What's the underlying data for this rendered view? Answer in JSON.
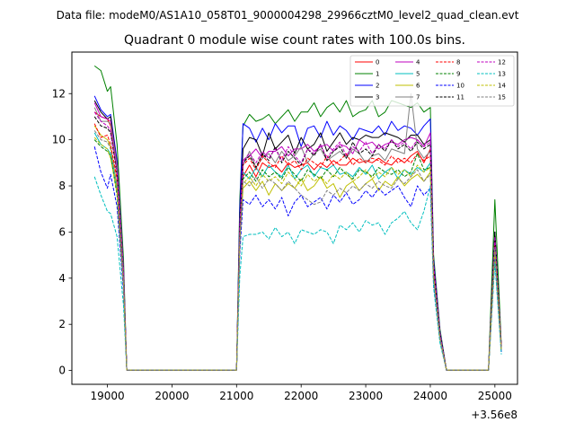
{
  "suptitle": "Data file: modeM0/AS1A10_058T01_9000004298_29966cztM0_level2_quad_clean.evt",
  "chart_data": {
    "type": "line",
    "title": "Quadrant 0 module wise count rates with 100.0s bins.",
    "xlabel": "",
    "ylabel": "",
    "x_offset_label": "+3.56e8",
    "xlim": [
      18450,
      25350
    ],
    "ylim": [
      -0.6,
      13.8
    ],
    "xticks": [
      19000,
      20000,
      21000,
      22000,
      23000,
      24000,
      25000
    ],
    "yticks": [
      0,
      2,
      4,
      6,
      8,
      10,
      12
    ],
    "legend_position": "upper right",
    "x_values": [
      18800,
      18900,
      19000,
      19050,
      19150,
      19250,
      19300,
      21000,
      21050,
      21100,
      21200,
      21300,
      21400,
      21500,
      21600,
      21700,
      21800,
      21900,
      22000,
      22100,
      22200,
      22300,
      22400,
      22500,
      22600,
      22700,
      22800,
      22900,
      23000,
      23100,
      23200,
      23300,
      23400,
      23500,
      23600,
      23700,
      23800,
      23900,
      24000,
      24050,
      24150,
      24250,
      24300,
      24900,
      25000,
      25100
    ],
    "series": [
      {
        "name": "0",
        "color": "#ff0000",
        "dashed": false,
        "values": [
          11.2,
          11.0,
          10.9,
          10.6,
          8.6,
          4.0,
          0.02,
          0.02,
          6.0,
          8.4,
          8.9,
          8.4,
          9.0,
          8.8,
          8.9,
          8.6,
          9.0,
          8.8,
          8.9,
          9.0,
          8.7,
          9.0,
          8.8,
          9.1,
          8.9,
          8.9,
          9.2,
          9.0,
          9.1,
          9.0,
          9.2,
          9.0,
          8.9,
          9.2,
          9.0,
          9.3,
          9.5,
          9.0,
          9.6,
          4.5,
          1.6,
          0.02,
          0.02,
          0.02,
          5.5,
          1.0
        ]
      },
      {
        "name": "1",
        "color": "#008000",
        "dashed": false,
        "values": [
          13.2,
          13.0,
          12.1,
          12.3,
          9.8,
          4.8,
          0.02,
          0.02,
          7.4,
          10.6,
          11.1,
          10.8,
          10.9,
          11.1,
          10.7,
          11.0,
          11.3,
          10.8,
          11.2,
          11.2,
          11.6,
          11.0,
          11.4,
          11.6,
          11.2,
          11.7,
          11.0,
          11.2,
          11.3,
          11.7,
          11.0,
          11.2,
          11.7,
          11.6,
          11.5,
          11.4,
          11.6,
          11.2,
          11.4,
          5.0,
          1.8,
          0.02,
          0.02,
          0.02,
          7.4,
          1.1
        ]
      },
      {
        "name": "2",
        "color": "#0000ff",
        "dashed": false,
        "values": [
          11.9,
          11.3,
          11.0,
          11.1,
          9.1,
          4.4,
          0.02,
          0.02,
          7.0,
          10.7,
          10.5,
          9.9,
          10.5,
          10.0,
          10.7,
          10.3,
          10.6,
          10.6,
          9.7,
          10.5,
          10.6,
          10.1,
          10.8,
          10.2,
          10.6,
          10.4,
          10.0,
          10.5,
          10.4,
          10.3,
          10.6,
          10.2,
          10.8,
          10.4,
          10.6,
          10.5,
          10.2,
          10.6,
          10.9,
          4.8,
          1.7,
          0.02,
          0.02,
          0.02,
          6.0,
          1.0
        ]
      },
      {
        "name": "3",
        "color": "#000000",
        "dashed": false,
        "values": [
          11.7,
          11.2,
          10.9,
          11.0,
          8.9,
          4.3,
          0.02,
          0.02,
          6.5,
          9.6,
          10.1,
          10.0,
          9.3,
          10.3,
          9.6,
          9.9,
          10.2,
          9.4,
          10.1,
          9.6,
          9.8,
          10.3,
          9.5,
          9.9,
          10.3,
          9.8,
          10.1,
          10.0,
          10.2,
          10.1,
          10.1,
          10.3,
          10.2,
          10.1,
          9.9,
          10.2,
          10.2,
          9.8,
          10.0,
          4.6,
          1.6,
          0.02,
          0.02,
          0.02,
          6.0,
          1.0
        ]
      },
      {
        "name": "4",
        "color": "#bf00bf",
        "dashed": false,
        "values": [
          11.6,
          11.0,
          10.9,
          10.8,
          8.9,
          4.3,
          0.02,
          0.02,
          6.3,
          9.1,
          9.3,
          9.6,
          9.2,
          9.5,
          9.5,
          9.7,
          9.3,
          9.6,
          9.6,
          9.8,
          9.5,
          9.7,
          9.8,
          9.5,
          9.8,
          9.7,
          9.4,
          10.0,
          9.8,
          9.9,
          9.6,
          9.8,
          9.9,
          9.8,
          10.0,
          10.1,
          10.0,
          9.7,
          10.3,
          4.6,
          1.6,
          0.02,
          0.02,
          0.02,
          5.7,
          1.0
        ]
      },
      {
        "name": "5",
        "color": "#00bfbf",
        "dashed": false,
        "values": [
          10.3,
          9.8,
          9.6,
          9.4,
          7.8,
          3.8,
          0.02,
          0.02,
          5.8,
          8.6,
          8.3,
          8.8,
          8.4,
          8.9,
          8.6,
          8.4,
          8.9,
          8.3,
          8.7,
          8.9,
          8.4,
          8.8,
          8.7,
          8.9,
          8.5,
          8.6,
          8.4,
          8.8,
          8.5,
          8.9,
          8.3,
          8.6,
          8.8,
          8.3,
          8.7,
          8.5,
          8.8,
          8.6,
          9.0,
          4.1,
          1.5,
          0.02,
          0.02,
          0.02,
          5.3,
          0.9
        ]
      },
      {
        "name": "6",
        "color": "#bfbf00",
        "dashed": false,
        "values": [
          10.6,
          10.2,
          10.0,
          9.7,
          8.0,
          3.9,
          0.02,
          0.02,
          5.5,
          7.9,
          8.2,
          7.8,
          8.2,
          7.6,
          8.1,
          7.8,
          8.1,
          7.9,
          8.3,
          7.8,
          8.0,
          8.4,
          7.9,
          8.1,
          7.5,
          8.0,
          8.2,
          7.8,
          8.1,
          8.3,
          7.8,
          8.2,
          8.0,
          8.4,
          8.0,
          8.3,
          8.5,
          8.2,
          8.6,
          4.0,
          1.4,
          0.02,
          0.02,
          0.02,
          5.2,
          0.9
        ]
      },
      {
        "name": "7",
        "color": "#808080",
        "dashed": false,
        "values": [
          11.4,
          10.8,
          10.8,
          10.7,
          8.8,
          4.3,
          0.02,
          0.02,
          6.2,
          8.9,
          9.5,
          8.8,
          9.2,
          9.4,
          9.0,
          9.5,
          9.1,
          9.3,
          9.7,
          9.0,
          9.4,
          9.6,
          9.1,
          9.3,
          9.5,
          9.2,
          9.6,
          9.4,
          9.0,
          9.3,
          9.4,
          9.1,
          9.6,
          9.5,
          9.4,
          12.0,
          9.6,
          9.2,
          9.5,
          4.5,
          1.6,
          0.02,
          0.02,
          0.02,
          5.7,
          1.0
        ]
      },
      {
        "name": "8",
        "color": "#ff0000",
        "dashed": true,
        "values": [
          10.7,
          10.1,
          10.2,
          9.8,
          8.3,
          4.0,
          0.02,
          0.02,
          6.0,
          8.9,
          9.2,
          8.7,
          9.3,
          9.0,
          8.8,
          9.3,
          8.9,
          9.1,
          8.7,
          9.2,
          9.0,
          8.8,
          9.3,
          8.9,
          9.1,
          9.4,
          8.9,
          9.2,
          9.0,
          9.2,
          9.1,
          8.9,
          9.3,
          9.0,
          9.2,
          9.0,
          9.4,
          9.1,
          9.3,
          4.4,
          1.5,
          0.02,
          0.02,
          0.02,
          5.6,
          1.0
        ]
      },
      {
        "name": "9",
        "color": "#008000",
        "dashed": true,
        "values": [
          10.0,
          9.7,
          9.5,
          9.3,
          7.6,
          3.7,
          0.02,
          0.02,
          5.7,
          8.3,
          8.6,
          8.2,
          8.7,
          8.4,
          8.6,
          8.3,
          8.8,
          8.5,
          8.2,
          8.7,
          8.5,
          8.3,
          8.7,
          8.4,
          8.8,
          8.5,
          8.3,
          8.7,
          8.6,
          8.4,
          8.8,
          8.6,
          8.5,
          8.7,
          8.4,
          8.6,
          9.4,
          8.7,
          8.8,
          4.1,
          1.4,
          0.02,
          0.02,
          0.02,
          5.3,
          0.9
        ]
      },
      {
        "name": "10",
        "color": "#0000ff",
        "dashed": true,
        "values": [
          9.7,
          8.6,
          7.9,
          8.5,
          7.1,
          3.4,
          0.02,
          0.02,
          5.1,
          7.4,
          7.2,
          7.6,
          7.1,
          7.4,
          7.0,
          7.5,
          6.7,
          7.3,
          7.6,
          7.1,
          7.3,
          7.5,
          7.0,
          7.6,
          7.3,
          7.7,
          7.2,
          7.4,
          7.8,
          7.5,
          7.9,
          7.6,
          7.8,
          8.0,
          7.5,
          7.1,
          8.0,
          7.6,
          7.9,
          3.7,
          1.3,
          0.02,
          0.02,
          0.02,
          4.8,
          0.8
        ]
      },
      {
        "name": "11",
        "color": "#000000",
        "dashed": true,
        "values": [
          11.0,
          10.6,
          10.5,
          10.3,
          8.5,
          4.1,
          0.02,
          0.02,
          6.1,
          9.0,
          9.3,
          8.8,
          9.4,
          9.1,
          9.7,
          9.0,
          9.5,
          9.2,
          8.9,
          9.6,
          9.3,
          9.8,
          9.1,
          9.5,
          9.7,
          9.2,
          9.9,
          9.4,
          9.6,
          9.3,
          9.8,
          9.5,
          10.0,
          9.6,
          9.8,
          9.5,
          9.9,
          9.6,
          9.8,
          4.6,
          1.6,
          0.02,
          0.02,
          0.02,
          6.0,
          1.0
        ]
      },
      {
        "name": "12",
        "color": "#bf00bf",
        "dashed": true,
        "values": [
          11.2,
          10.8,
          10.6,
          10.4,
          8.6,
          4.2,
          0.02,
          0.02,
          6.2,
          9.1,
          9.4,
          9.0,
          9.5,
          9.2,
          9.6,
          9.1,
          9.7,
          9.3,
          9.0,
          9.6,
          9.4,
          9.8,
          9.2,
          9.6,
          9.9,
          9.3,
          9.7,
          9.5,
          9.9,
          9.4,
          9.8,
          9.6,
          10.0,
          9.7,
          9.9,
          9.6,
          10.0,
          9.7,
          9.9,
          4.6,
          1.6,
          0.02,
          0.02,
          0.02,
          5.8,
          1.0
        ]
      },
      {
        "name": "13",
        "color": "#00bfbf",
        "dashed": true,
        "values": [
          8.4,
          7.6,
          6.9,
          6.8,
          5.8,
          2.8,
          0.02,
          0.02,
          4.1,
          5.8,
          5.9,
          5.9,
          6.0,
          5.7,
          6.2,
          5.8,
          6.0,
          5.5,
          6.1,
          6.0,
          5.9,
          6.1,
          6.0,
          5.5,
          6.3,
          6.1,
          6.4,
          6.0,
          6.5,
          6.3,
          6.4,
          5.9,
          6.4,
          6.6,
          6.9,
          6.4,
          6.1,
          6.9,
          8.0,
          3.6,
          1.2,
          0.02,
          0.02,
          0.02,
          4.7,
          0.7
        ]
      },
      {
        "name": "14",
        "color": "#bfbf00",
        "dashed": true,
        "values": [
          10.1,
          9.8,
          9.6,
          9.2,
          7.7,
          3.7,
          0.02,
          0.02,
          5.6,
          8.1,
          8.4,
          8.0,
          8.5,
          8.2,
          8.4,
          8.1,
          8.6,
          8.3,
          8.0,
          8.5,
          8.2,
          8.4,
          8.1,
          8.5,
          8.3,
          8.6,
          8.2,
          8.4,
          8.7,
          8.3,
          8.6,
          8.4,
          8.8,
          8.5,
          8.7,
          8.4,
          8.9,
          8.6,
          8.8,
          4.1,
          1.4,
          0.02,
          0.02,
          0.02,
          5.2,
          0.9
        ]
      },
      {
        "name": "15",
        "color": "#808080",
        "dashed": true,
        "values": [
          10.4,
          10.0,
          9.9,
          9.6,
          8.0,
          3.9,
          0.02,
          0.02,
          5.7,
          8.2,
          8.0,
          8.4,
          7.9,
          8.3,
          8.1,
          7.8,
          8.2,
          7.9,
          7.6,
          7.4,
          7.2,
          7.3,
          7.8,
          7.6,
          7.9,
          7.7,
          8.0,
          7.8,
          8.1,
          7.9,
          8.2,
          8.0,
          7.9,
          8.3,
          8.1,
          8.4,
          8.7,
          8.2,
          8.5,
          4.0,
          1.4,
          0.02,
          0.02,
          0.02,
          5.3,
          0.9
        ]
      }
    ]
  }
}
